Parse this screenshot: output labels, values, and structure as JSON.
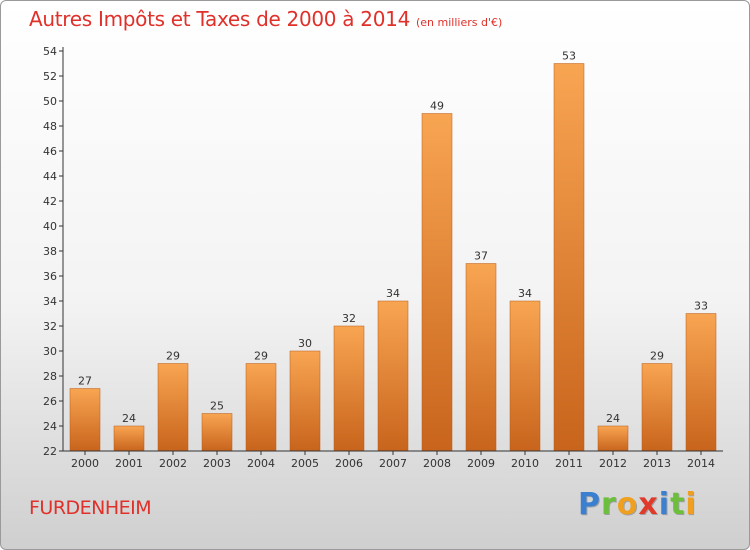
{
  "header": {
    "title": "Autres Impôts et Taxes de 2000 à 2014",
    "subtitle": "(en milliers d'€)"
  },
  "footer": {
    "commune": "FURDENHEIM",
    "logo_letters": [
      {
        "ch": "P",
        "color": "#3a7fd0"
      },
      {
        "ch": "r",
        "color": "#6cbf3c"
      },
      {
        "ch": "o",
        "color": "#f0a020"
      },
      {
        "ch": "x",
        "color": "#e03a2a"
      },
      {
        "ch": "i",
        "color": "#3a7fd0"
      },
      {
        "ch": "t",
        "color": "#6cbf3c"
      },
      {
        "ch": "i",
        "color": "#f0a020"
      }
    ]
  },
  "chart_data": {
    "type": "bar",
    "title": "Autres Impôts et Taxes de 2000 à 2014",
    "subtitle": "(en milliers d'€)",
    "xlabel": "",
    "ylabel": "",
    "ylim": [
      22,
      54
    ],
    "yticks": [
      22,
      24,
      26,
      28,
      30,
      32,
      34,
      36,
      38,
      40,
      42,
      44,
      46,
      48,
      50,
      52,
      54
    ],
    "categories": [
      "2000",
      "2001",
      "2002",
      "2003",
      "2004",
      "2005",
      "2006",
      "2007",
      "2008",
      "2009",
      "2010",
      "2011",
      "2012",
      "2013",
      "2014"
    ],
    "values": [
      27,
      24,
      29,
      25,
      29,
      30,
      32,
      34,
      49,
      37,
      34,
      53,
      24,
      29,
      33
    ],
    "grid": false,
    "colors": {
      "bar_light": "#f8a552",
      "bar_dark": "#c8641c",
      "axis": "#333333"
    }
  }
}
